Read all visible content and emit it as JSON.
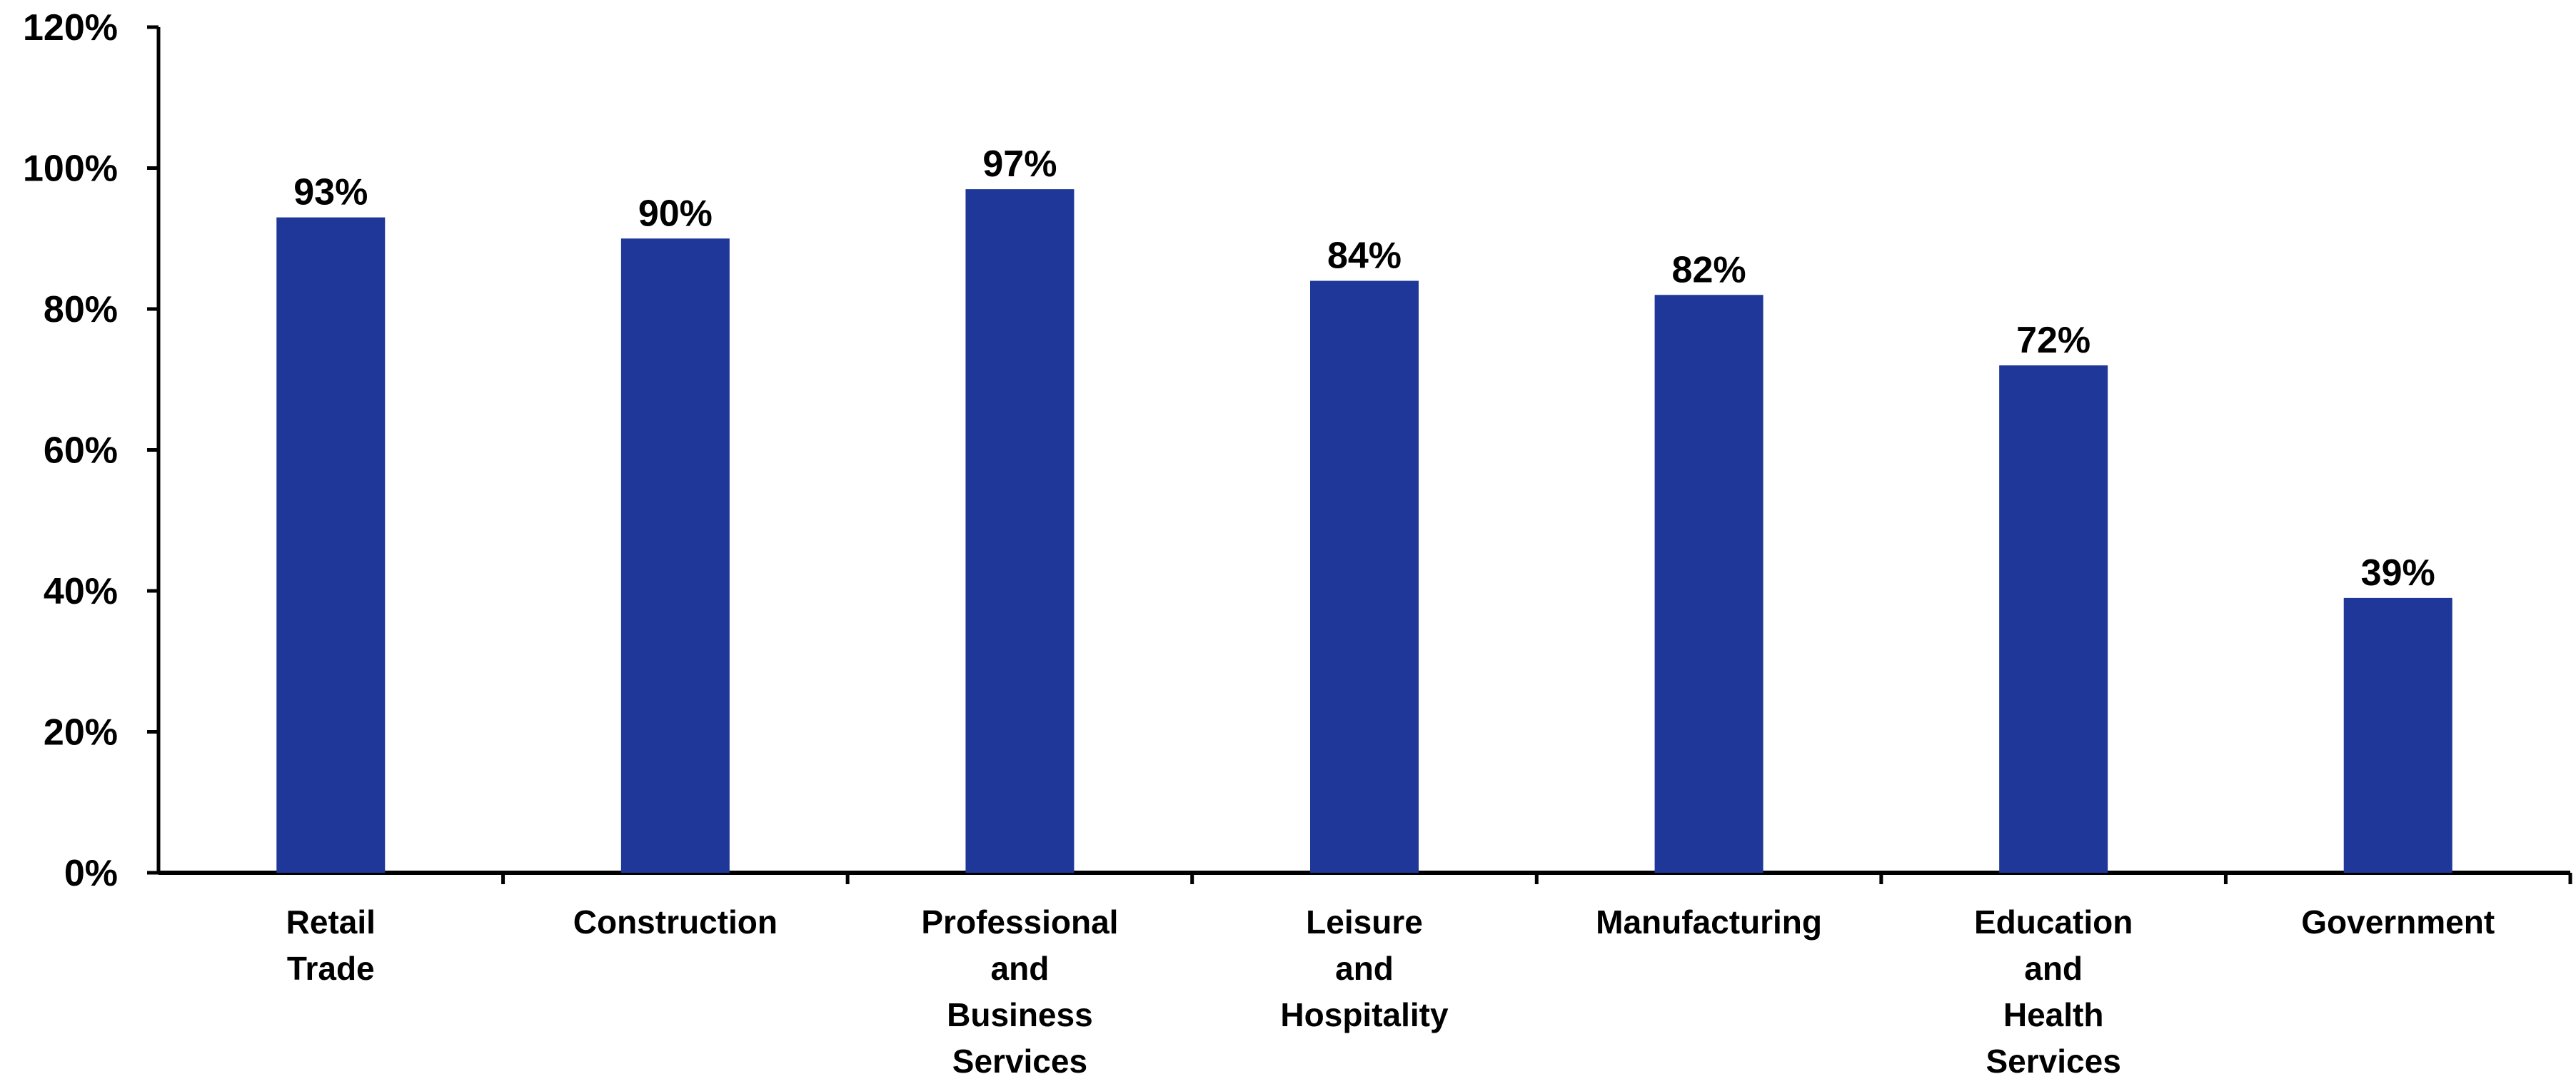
{
  "chart_data": {
    "type": "bar",
    "title": "",
    "xlabel": "",
    "ylabel": "",
    "categories": [
      [
        "Retail",
        "Trade"
      ],
      [
        "Construction"
      ],
      [
        "Professional",
        "and",
        "Business",
        "Services"
      ],
      [
        "Leisure",
        "and",
        "Hospitality"
      ],
      [
        "Manufacturing"
      ],
      [
        "Education",
        "and",
        "Health",
        "Services"
      ],
      [
        "Government"
      ]
    ],
    "values": [
      93,
      90,
      97,
      84,
      82,
      72,
      39
    ],
    "data_labels": [
      "93%",
      "90%",
      "97%",
      "84%",
      "82%",
      "72%",
      "39%"
    ],
    "y_ticks": [
      0,
      20,
      40,
      60,
      80,
      100,
      120
    ],
    "y_tick_labels": [
      "0%",
      "20%",
      "40%",
      "60%",
      "80%",
      "100%",
      "120%"
    ],
    "ylim": [
      0,
      120
    ],
    "grid": false,
    "legend": "none",
    "colors": {
      "bar": "#1F3799",
      "axis": "#000000",
      "text": "#000000"
    }
  }
}
